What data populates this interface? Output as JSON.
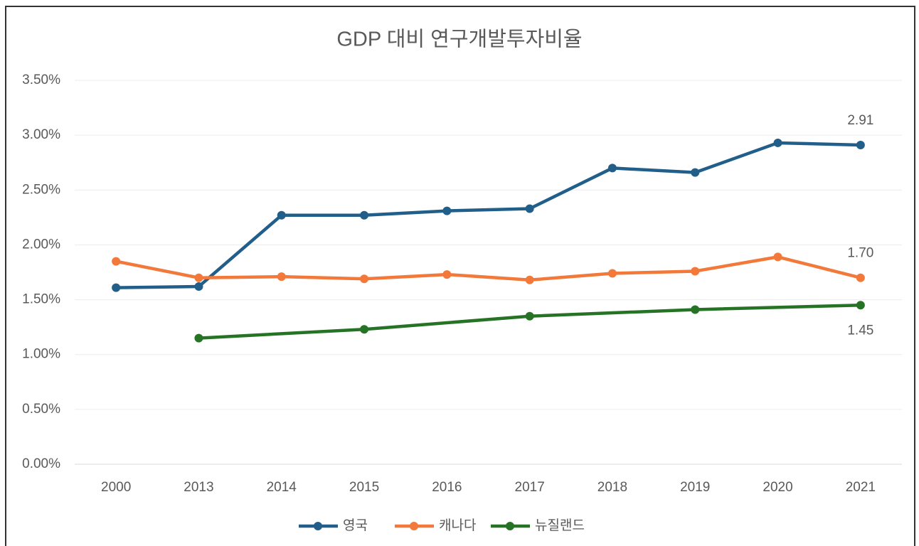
{
  "chart_data": {
    "type": "line",
    "title": "GDP 대비 연구개발투자비율",
    "categories": [
      "2000",
      "2013",
      "2014",
      "2015",
      "2016",
      "2017",
      "2018",
      "2019",
      "2020",
      "2021"
    ],
    "series": [
      {
        "name": "영국",
        "color": "#215f8a",
        "values": [
          1.61,
          1.62,
          2.27,
          2.27,
          2.31,
          2.33,
          2.7,
          2.66,
          2.93,
          2.91
        ],
        "value_labels": [
          null,
          null,
          null,
          null,
          null,
          null,
          null,
          null,
          null,
          "2.91"
        ]
      },
      {
        "name": "캐나다",
        "color": "#f2793a",
        "values": [
          1.85,
          1.7,
          1.71,
          1.69,
          1.73,
          1.68,
          1.74,
          1.76,
          1.89,
          1.7
        ],
        "value_labels": [
          null,
          null,
          null,
          null,
          null,
          null,
          null,
          null,
          null,
          "1.70"
        ]
      },
      {
        "name": "뉴질랜드",
        "color": "#267326",
        "values": [
          null,
          1.15,
          null,
          1.23,
          null,
          1.35,
          null,
          1.41,
          null,
          1.45
        ],
        "value_labels": [
          null,
          null,
          null,
          null,
          null,
          null,
          null,
          null,
          null,
          "1.45"
        ]
      }
    ],
    "connect_gaps": true,
    "ylim": [
      0,
      3.5
    ],
    "yticks": [
      {
        "value": 0,
        "label": "0.00%"
      },
      {
        "value": 0.5,
        "label": "0.50%"
      },
      {
        "value": 1,
        "label": "1.00%"
      },
      {
        "value": 1.5,
        "label": "1.50%"
      },
      {
        "value": 2,
        "label": "2.00%"
      },
      {
        "value": 2.5,
        "label": "2.50%"
      },
      {
        "value": 3,
        "label": "3.00%"
      },
      {
        "value": 3.5,
        "label": "3.50%"
      }
    ],
    "grid": true,
    "legend": "bottom"
  }
}
